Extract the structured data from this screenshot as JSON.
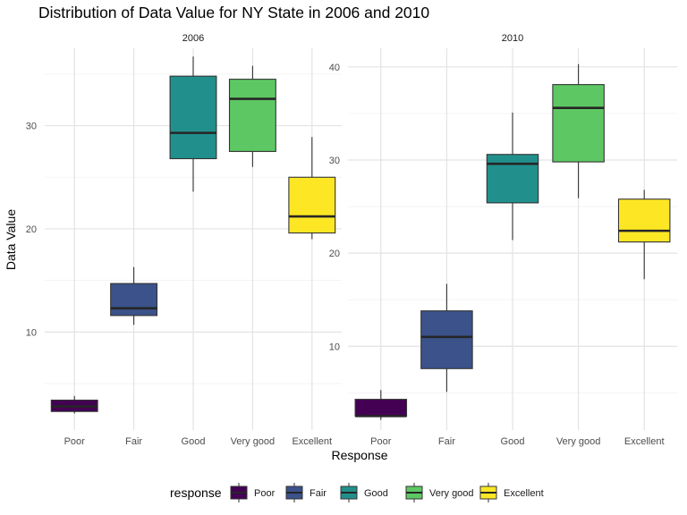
{
  "chart_data": {
    "type": "box",
    "title": "Distribution of Data Value for NY State in 2006 and 2010",
    "xlabel": "Response",
    "ylabel": "Data Value",
    "categories": [
      "Poor",
      "Fair",
      "Good",
      "Very good",
      "Excellent"
    ],
    "colors": {
      "Poor": "#440154",
      "Fair": "#3B528B",
      "Good": "#21908C",
      "Very good": "#5DC863",
      "Excellent": "#FDE725"
    },
    "legend": {
      "title": "response",
      "placement": "bottom",
      "items": [
        "Poor",
        "Fair",
        "Good",
        "Very good",
        "Excellent"
      ]
    },
    "grid": true,
    "panels": [
      {
        "label": "2006",
        "ylim": [
          0.5,
          37.5
        ],
        "yticks": [
          10,
          20,
          30
        ],
        "boxes": [
          {
            "category": "Poor",
            "min": 2.1,
            "q1": 2.3,
            "median": 2.8,
            "q3": 3.4,
            "max": 3.8
          },
          {
            "category": "Fair",
            "min": 10.7,
            "q1": 11.6,
            "median": 12.3,
            "q3": 14.7,
            "max": 16.3
          },
          {
            "category": "Good",
            "min": 23.6,
            "q1": 26.8,
            "median": 29.3,
            "q3": 34.8,
            "max": 36.7
          },
          {
            "category": "Very good",
            "min": 26.0,
            "q1": 27.5,
            "median": 32.6,
            "q3": 34.5,
            "max": 35.8
          },
          {
            "category": "Excellent",
            "min": 19.0,
            "q1": 19.6,
            "median": 21.2,
            "q3": 25.0,
            "max": 28.9
          }
        ]
      },
      {
        "label": "2010",
        "ylim": [
          1.0,
          42.0
        ],
        "yticks": [
          10,
          20,
          30,
          40
        ],
        "boxes": [
          {
            "category": "Poor",
            "min": 2.1,
            "q1": 2.5,
            "median": 2.5,
            "q3": 4.3,
            "max": 5.3
          },
          {
            "category": "Fair",
            "min": 5.1,
            "q1": 7.6,
            "median": 11.0,
            "q3": 13.8,
            "max": 16.7
          },
          {
            "category": "Good",
            "min": 21.4,
            "q1": 25.4,
            "median": 29.6,
            "q3": 30.6,
            "max": 35.1
          },
          {
            "category": "Very good",
            "min": 25.9,
            "q1": 29.8,
            "median": 35.6,
            "q3": 38.1,
            "max": 40.3
          },
          {
            "category": "Excellent",
            "min": 17.2,
            "q1": 21.2,
            "median": 22.4,
            "q3": 25.8,
            "max": 26.8
          }
        ]
      }
    ]
  }
}
